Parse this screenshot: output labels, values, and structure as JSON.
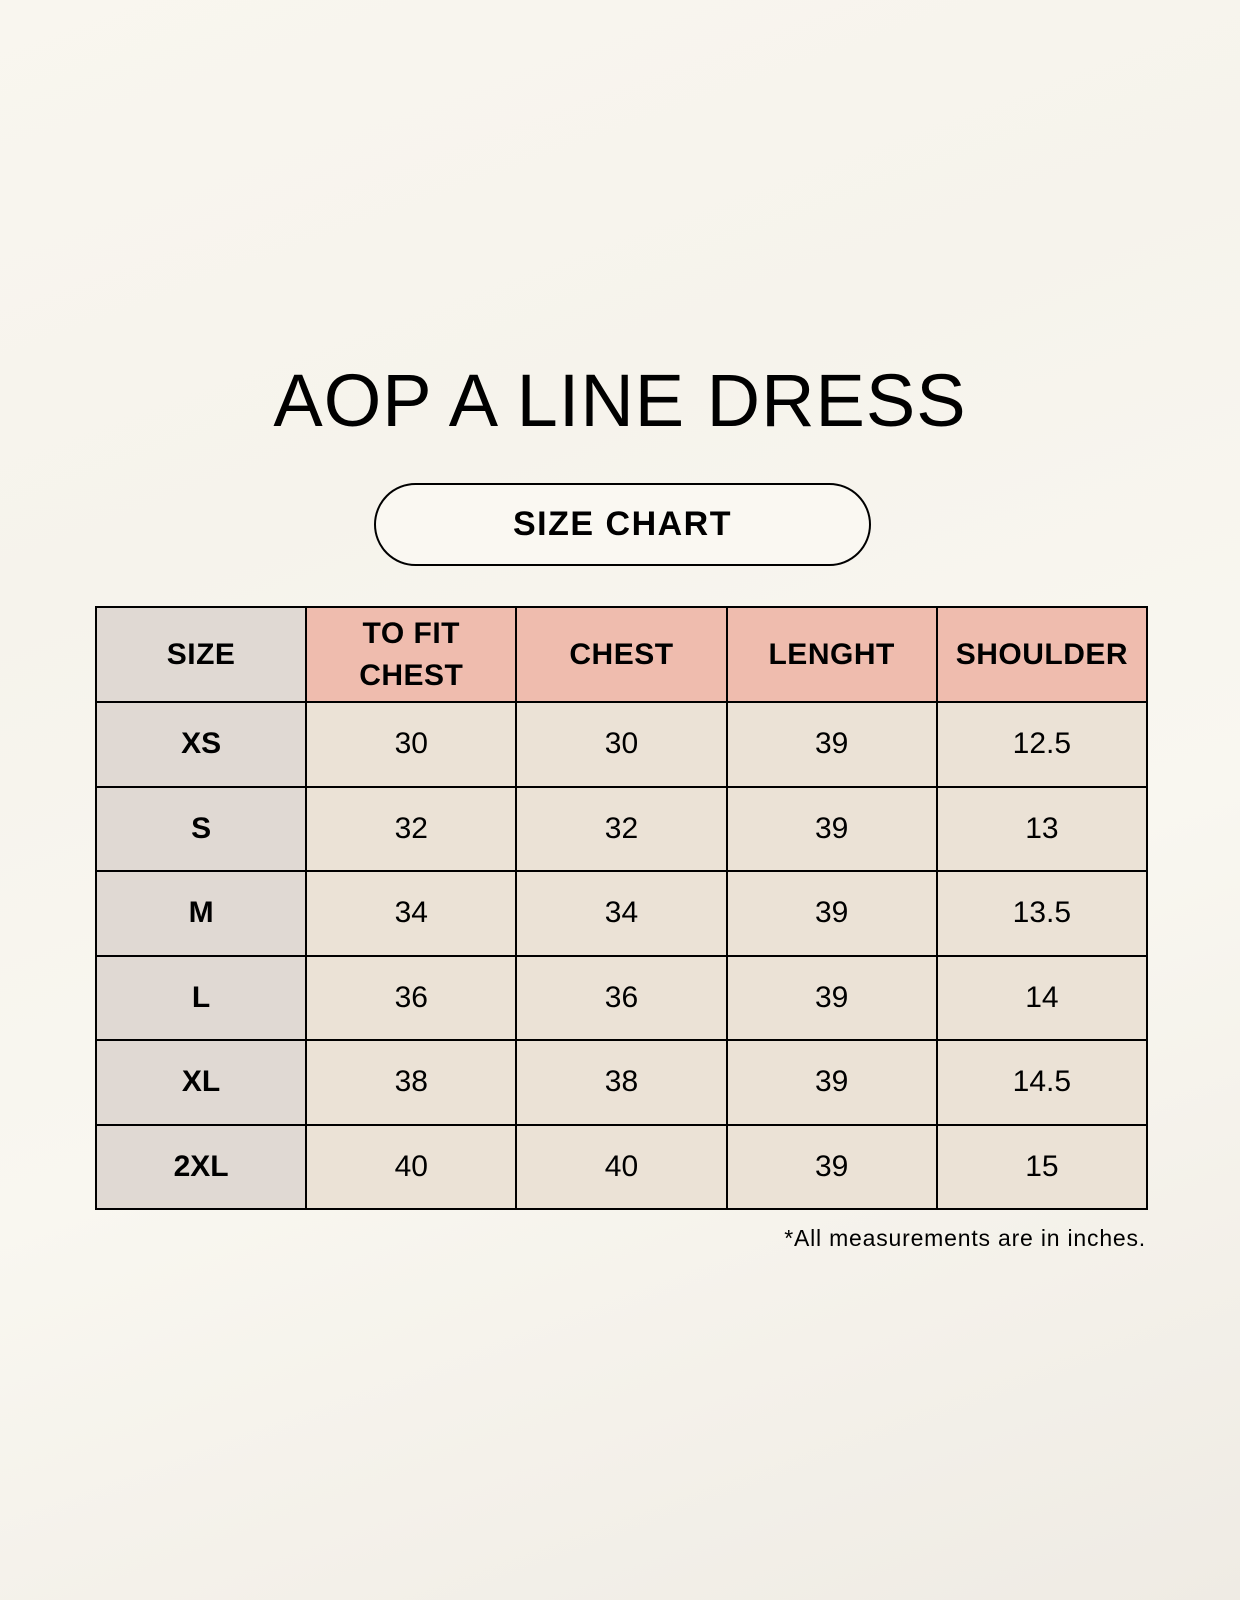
{
  "title": "AOP A LINE DRESS",
  "subtitle": "SIZE CHART",
  "colors": {
    "header": "#efbcae",
    "size_column": "#e0d9d3",
    "cells": "#ebe2d6"
  },
  "table": {
    "headers": [
      "SIZE",
      "TO FIT CHEST",
      "CHEST",
      "LENGHT",
      "SHOULDER"
    ],
    "rows": [
      [
        "XS",
        "30",
        "30",
        "39",
        "12.5"
      ],
      [
        "S",
        "32",
        "32",
        "39",
        "13"
      ],
      [
        "M",
        "34",
        "34",
        "39",
        "13.5"
      ],
      [
        "L",
        "36",
        "36",
        "39",
        "14"
      ],
      [
        "XL",
        "38",
        "38",
        "39",
        "14.5"
      ],
      [
        "2XL",
        "40",
        "40",
        "39",
        "15"
      ]
    ]
  },
  "note": "*All measurements are in inches."
}
